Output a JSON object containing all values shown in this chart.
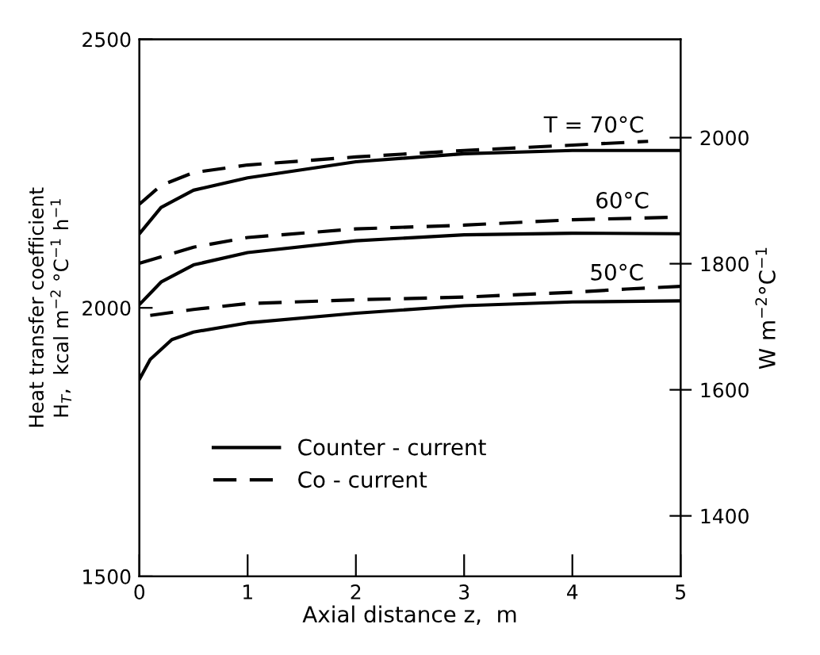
{
  "chart_data": {
    "type": "line",
    "xlabel": "Axial distance z,  m",
    "ylabel": "Heat transfer coefficient\nH$_{T}$,  kcal m$^{−2}$ °C$^{−1}$ h$^{−1}$",
    "y2label": "W m$^{−2}$°C$^{−1}$",
    "xlim": [
      0,
      5
    ],
    "xticks": [
      0,
      1,
      2,
      3,
      4,
      5
    ],
    "ylim": [
      1500,
      2500
    ],
    "yticks": [
      1500,
      2000,
      2500
    ],
    "y2lim": [
      1304,
      2156
    ],
    "y2ticks": [
      1400,
      1600,
      1800,
      2000
    ],
    "grid": false,
    "legend": "bottom left",
    "series": [
      {
        "name": "Counter - current",
        "color": "#000000",
        "line_style": "solid",
        "x": [
          0,
          0.2,
          0.5,
          1,
          2,
          3,
          4,
          5
        ],
        "values": [
          2138,
          2187,
          2219,
          2242,
          2272,
          2287,
          2293,
          2293
        ]
      },
      {
        "name": "Co - current",
        "color": "#000000",
        "line_style": "dashed",
        "x": [
          0,
          0.2,
          0.5,
          1,
          2,
          3,
          4,
          4.7
        ],
        "values": [
          2193,
          2228,
          2252,
          2266,
          2281,
          2293,
          2303,
          2310
        ]
      },
      {
        "color": "#000000",
        "line_style": "solid",
        "x": [
          0,
          0.2,
          0.5,
          1,
          2,
          3,
          4,
          5
        ],
        "values": [
          2006,
          2048,
          2080,
          2103,
          2125,
          2136,
          2139,
          2138
        ]
      },
      {
        "color": "#000000",
        "line_style": "dashed",
        "x": [
          0,
          0.5,
          1,
          2,
          3,
          4,
          5
        ],
        "values": [
          2083,
          2113,
          2131,
          2147,
          2154,
          2164,
          2169
        ]
      },
      {
        "color": "#000000",
        "line_style": "solid",
        "x": [
          0,
          0.1,
          0.3,
          0.5,
          1,
          2,
          3,
          4,
          5
        ],
        "values": [
          1867,
          1904,
          1941,
          1955,
          1972,
          1990,
          2004,
          2011,
          2013
        ]
      },
      {
        "color": "#000000",
        "line_style": "dashed",
        "x": [
          0.1,
          0.5,
          1,
          2,
          3,
          4,
          4.5,
          5
        ],
        "values": [
          1986,
          1997,
          2008,
          2015,
          2020,
          2029,
          2035,
          2040
        ]
      }
    ],
    "annotations": [
      {
        "text": "T = 70°C",
        "x": 4.2,
        "y": 2310
      },
      {
        "text": "60°C",
        "x": 4.46,
        "y": 2169
      },
      {
        "text": "50°C",
        "x": 4.41,
        "y": 2035
      }
    ]
  }
}
